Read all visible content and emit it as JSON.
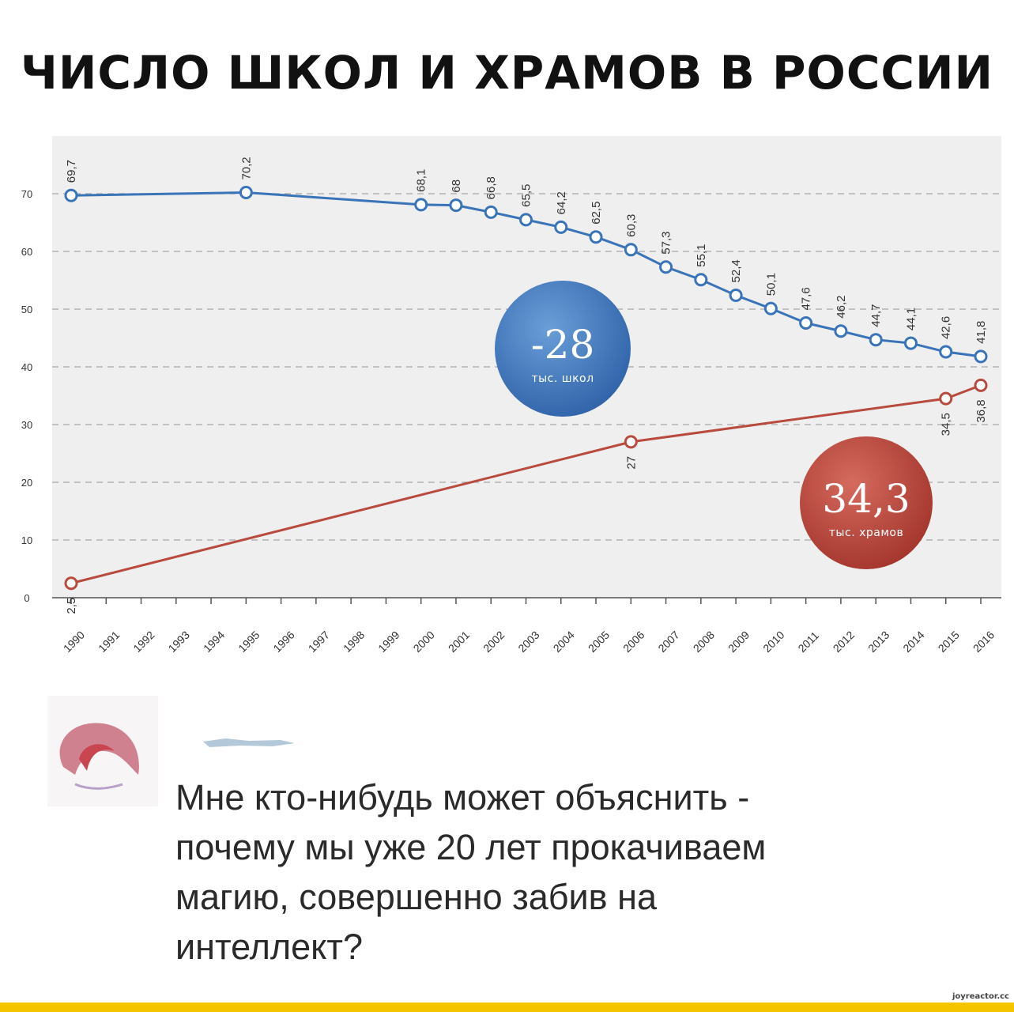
{
  "title": "ЧИСЛО ШКОЛ И ХРАМОВ В РОССИИ",
  "chart_data": {
    "type": "line",
    "x_range": [
      1990,
      2016
    ],
    "ylim": [
      0,
      70
    ],
    "yticks": [
      0,
      10,
      20,
      30,
      40,
      50,
      60,
      70
    ],
    "xticks": [
      "1990",
      "1991",
      "1992",
      "1993",
      "1994",
      "1995",
      "1996",
      "1997",
      "1998",
      "1999",
      "2000",
      "2001",
      "2002",
      "2003",
      "2004",
      "2005",
      "2006",
      "2007",
      "2008",
      "2009",
      "2010",
      "2011",
      "2012",
      "2013",
      "2014",
      "2015",
      "2016"
    ],
    "grid": true,
    "series": [
      {
        "color": "#3a74b8",
        "points": [
          {
            "x": 1990,
            "y": 69.7,
            "label": "69,7"
          },
          {
            "x": 1995,
            "y": 70.2,
            "label": "70,2"
          },
          {
            "x": 2000,
            "y": 68.1,
            "label": "68,1"
          },
          {
            "x": 2001,
            "y": 68,
            "label": "68"
          },
          {
            "x": 2002,
            "y": 66.8,
            "label": "66,8"
          },
          {
            "x": 2003,
            "y": 65.5,
            "label": "65,5"
          },
          {
            "x": 2004,
            "y": 64.2,
            "label": "64,2"
          },
          {
            "x": 2005,
            "y": 62.5,
            "label": "62,5"
          },
          {
            "x": 2006,
            "y": 60.3,
            "label": "60,3"
          },
          {
            "x": 2007,
            "y": 57.3,
            "label": "57,3"
          },
          {
            "x": 2008,
            "y": 55.1,
            "label": "55,1"
          },
          {
            "x": 2009,
            "y": 52.4,
            "label": "52,4"
          },
          {
            "x": 2010,
            "y": 50.1,
            "label": "50,1"
          },
          {
            "x": 2011,
            "y": 47.6,
            "label": "47,6"
          },
          {
            "x": 2012,
            "y": 46.2,
            "label": "46,2"
          },
          {
            "x": 2013,
            "y": 44.7,
            "label": "44,7"
          },
          {
            "x": 2014,
            "y": 44.1,
            "label": "44,1"
          },
          {
            "x": 2015,
            "y": 42.6,
            "label": "42,6"
          },
          {
            "x": 2016,
            "y": 41.8,
            "label": "41,8"
          }
        ]
      },
      {
        "color": "#b84a3e",
        "points": [
          {
            "x": 1990,
            "y": 2.5,
            "label": "2,5"
          },
          {
            "x": 2006,
            "y": 27,
            "label": "27"
          },
          {
            "x": 2015,
            "y": 34.5,
            "label": "34,5"
          },
          {
            "x": 2016,
            "y": 36.8,
            "label": "36,8"
          }
        ]
      }
    ],
    "annotations": [
      {
        "value": "-28",
        "text": "тыс. школ",
        "color": "#3b72b8"
      },
      {
        "value": "34,3",
        "text": "тыс. храмов",
        "color": "#b8443a"
      }
    ]
  },
  "comment": {
    "text": "Мне кто-нибудь может объяснить -\nпочему мы уже 20 лет прокачиваем\nмагию, совершенно забив на\nинтеллект?"
  },
  "watermark": "joyreactor.cc"
}
